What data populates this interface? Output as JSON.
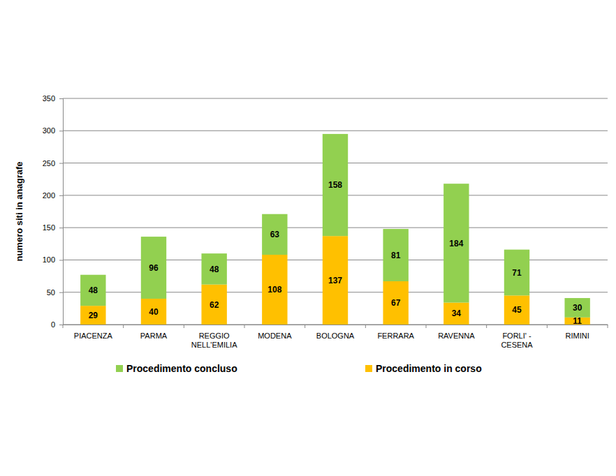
{
  "chart_data": {
    "type": "bar",
    "stacked": true,
    "data_labels": true,
    "grid": true,
    "legend": "bottom",
    "y_label": "numero siti in anagrafe",
    "categories": [
      "PIACENZA",
      "PARMA",
      "REGGIO NELL'EMILIA",
      "MODENA",
      "BOLOGNA",
      "FERRARA",
      "RAVENNA",
      "FORLI' - CESENA",
      "RIMINI"
    ],
    "series": [
      {
        "name": "Procedimento in corso",
        "color": "#ffc000",
        "values": [
          29,
          40,
          62,
          108,
          137,
          67,
          34,
          45,
          11
        ]
      },
      {
        "name": "Procedimento concluso",
        "color": "#92d050",
        "values": [
          48,
          96,
          48,
          63,
          158,
          81,
          184,
          71,
          30
        ]
      }
    ],
    "ylim": [
      0,
      350
    ],
    "yticks": [
      0,
      50,
      100,
      150,
      200,
      250,
      300,
      350
    ]
  }
}
